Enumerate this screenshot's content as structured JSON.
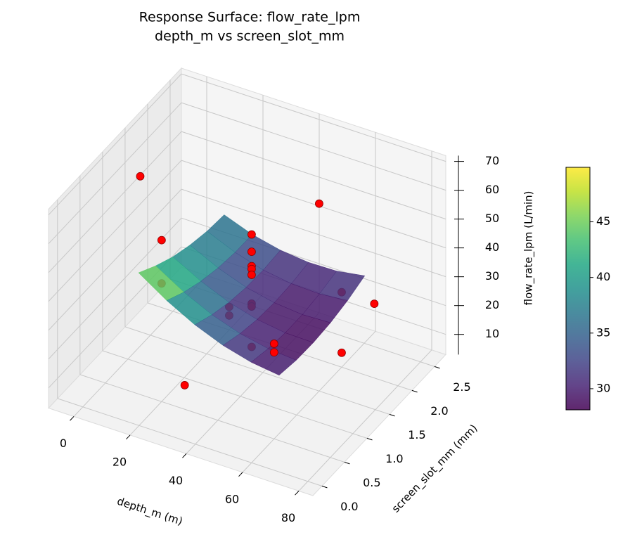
{
  "chart_data": {
    "type": "surface3d",
    "title": "Response Surface: flow_rate_lpm",
    "subtitle": "depth_m vs screen_slot_mm",
    "x_label": "depth_m (m)",
    "y_label": "screen_slot_mm (mm)",
    "z_label": "flow_rate_lpm (L/min)",
    "xlim": [
      -9,
      85
    ],
    "ylim": [
      -0.2,
      2.75
    ],
    "zlim": [
      3,
      72
    ],
    "xticks": [
      0,
      20,
      40,
      60,
      80
    ],
    "yticks": [
      {
        "value": 0,
        "label": "0.0"
      },
      0.5,
      {
        "value": 1,
        "label": "1.0"
      },
      1.5,
      {
        "value": 2,
        "label": "2.0"
      },
      2.5
    ],
    "zticks": [
      10,
      20,
      30,
      40,
      50,
      60,
      70
    ],
    "grid": true,
    "surface": {
      "colormap": "viridis",
      "opacity": 0.85,
      "x": [
        15,
        25,
        35,
        45,
        55,
        65
      ],
      "y": [
        0.3,
        0.68,
        1.06,
        1.44,
        1.82,
        2.2
      ],
      "z": [
        [
          49.4,
          43.0,
          37.8,
          33.9,
          31.3,
          30.0
        ],
        [
          45.5,
          39.6,
          35.0,
          31.7,
          29.7,
          28.9
        ],
        [
          42.3,
          37.1,
          33.0,
          30.3,
          28.9,
          28.7
        ],
        [
          40.1,
          35.4,
          31.9,
          29.8,
          28.9,
          29.3
        ],
        [
          38.6,
          34.5,
          31.6,
          30.1,
          29.8,
          30.7
        ],
        [
          38.0,
          34.4,
          32.2,
          31.2,
          31.4,
          33.0
        ]
      ]
    },
    "colorbar": {
      "clim": [
        28.1,
        49.9
      ],
      "ticks": [
        30,
        35,
        40,
        45
      ]
    },
    "scatter": {
      "color": "#ff0000",
      "edgecolor": "#8b0000",
      "x": [
        40,
        40,
        40,
        40,
        40,
        40,
        40,
        40,
        20,
        20,
        60,
        60,
        20,
        20,
        60,
        60,
        74,
        25,
        6,
        60
      ],
      "y": [
        1.25,
        1.25,
        1.25,
        1.25,
        1.25,
        1.25,
        1.25,
        1.25,
        2.0,
        2.0,
        0.5,
        0.5,
        0.5,
        0.5,
        2.0,
        2.0,
        1.85,
        0.7,
        0.9,
        1.5
      ],
      "z": [
        55,
        49,
        44,
        43,
        41,
        31,
        30,
        16,
        11,
        8,
        36,
        33,
        59,
        44,
        29,
        8,
        32,
        7,
        70,
        68
      ]
    }
  }
}
